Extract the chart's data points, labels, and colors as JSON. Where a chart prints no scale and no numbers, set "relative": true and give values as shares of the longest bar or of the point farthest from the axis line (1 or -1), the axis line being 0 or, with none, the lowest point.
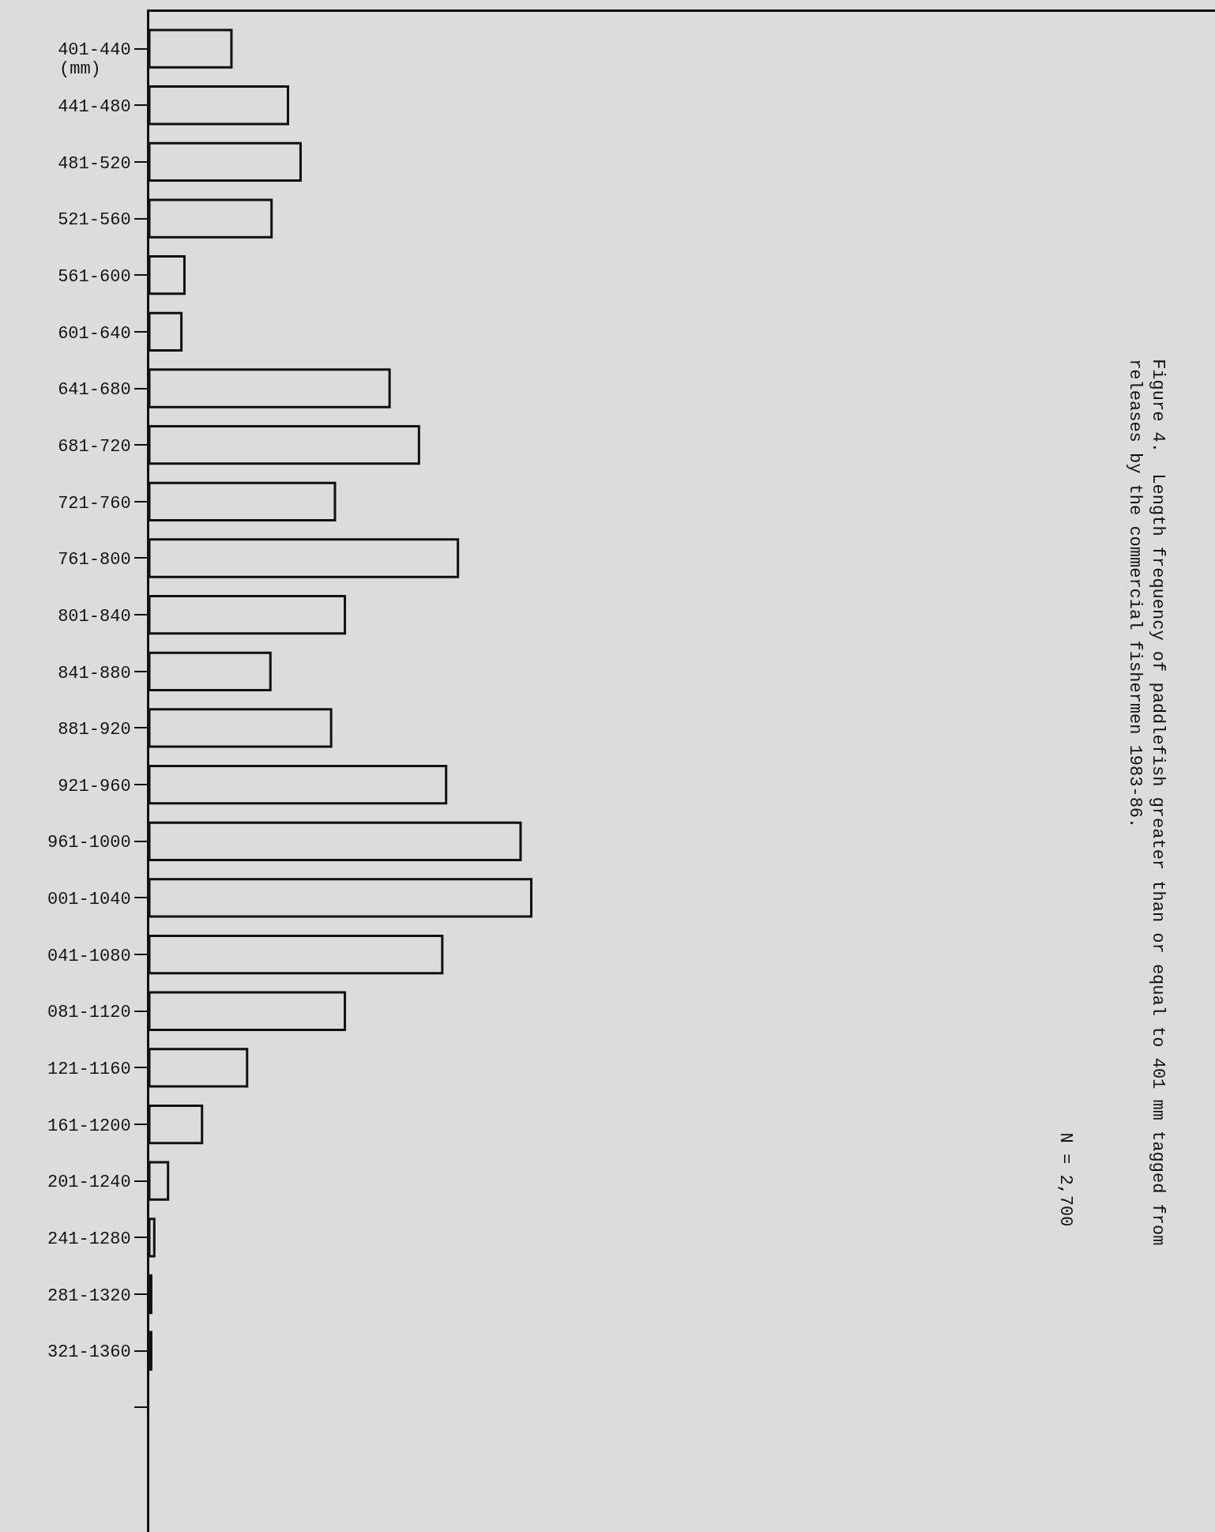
{
  "chart_data": {
    "type": "bar",
    "orientation": "horizontal",
    "relative": true,
    "title": "Figure 4.  Length frequency of paddlefish greater than or equal to 401 mm tagged from releases by the commercial fishermen 1983-86.",
    "ylabel": "(mm)",
    "categories": [
      "401-440",
      "441-480",
      "481-520",
      "521-560",
      "561-600",
      "601-640",
      "641-680",
      "681-720",
      "721-760",
      "761-800",
      "801-840",
      "841-880",
      "881-920",
      "921-960",
      "961-1000",
      "001-1040",
      "041-1080",
      "081-1120",
      "121-1160",
      "161-1200",
      "201-1240",
      "241-1280",
      "281-1320",
      "321-1360",
      null
    ],
    "values": [
      0.215,
      0.363,
      0.396,
      0.32,
      0.092,
      0.084,
      0.629,
      0.706,
      0.486,
      0.808,
      0.512,
      0.317,
      0.476,
      0.777,
      0.972,
      1,
      0.767,
      0.512,
      0.256,
      0.138,
      0.049,
      0.013,
      0.005,
      0.005,
      null
    ],
    "color": "#dcdcdc",
    "annotations": [
      "N = 2,700"
    ],
    "grid": false,
    "legend": false
  }
}
